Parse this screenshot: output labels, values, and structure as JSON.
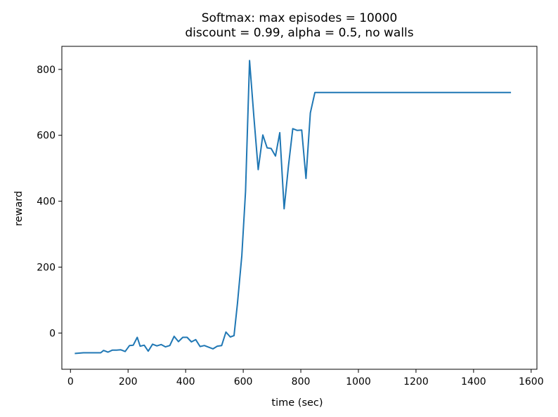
{
  "chart_data": {
    "type": "line",
    "title": [
      "Softmax: max episodes = 10000",
      "discount = 0.99, alpha = 0.5, no walls"
    ],
    "xlabel": "time (sec)",
    "ylabel": "reward",
    "xlim": [
      -30,
      1620
    ],
    "ylim": [
      -110,
      870
    ],
    "xticks": [
      0,
      200,
      400,
      600,
      800,
      1000,
      1200,
      1400,
      1600
    ],
    "yticks": [
      0,
      200,
      400,
      600,
      800
    ],
    "grid": false,
    "legend": "none",
    "series": [
      {
        "color": "#1f77b4",
        "x": [
          15,
          30,
          45,
          60,
          75,
          90,
          105,
          115,
          130,
          145,
          160,
          175,
          190,
          205,
          218,
          232,
          242,
          256,
          270,
          285,
          300,
          315,
          330,
          345,
          360,
          375,
          390,
          405,
          420,
          435,
          450,
          465,
          480,
          495,
          510,
          525,
          540,
          555,
          568,
          580,
          595,
          608,
          622,
          637,
          652,
          668,
          683,
          697,
          712,
          727,
          742,
          757,
          772,
          787,
          803,
          818,
          833,
          849,
          863,
          880,
          900,
          950,
          1000,
          1100,
          1200,
          1300,
          1400,
          1530
        ],
        "y": [
          -62,
          -61,
          -60,
          -60,
          -60,
          -60,
          -60,
          -53,
          -58,
          -52,
          -52,
          -51,
          -56,
          -38,
          -37,
          -13,
          -40,
          -37,
          -55,
          -34,
          -39,
          -35,
          -42,
          -38,
          -10,
          -26,
          -13,
          -13,
          -27,
          -20,
          -41,
          -38,
          -43,
          -48,
          -40,
          -38,
          3,
          -12,
          -8,
          90,
          235,
          430,
          827,
          655,
          496,
          601,
          562,
          560,
          537,
          608,
          377,
          506,
          620,
          615,
          616,
          469,
          668,
          730,
          730,
          730,
          730,
          730,
          730,
          730,
          730,
          730,
          730,
          730
        ]
      }
    ]
  }
}
